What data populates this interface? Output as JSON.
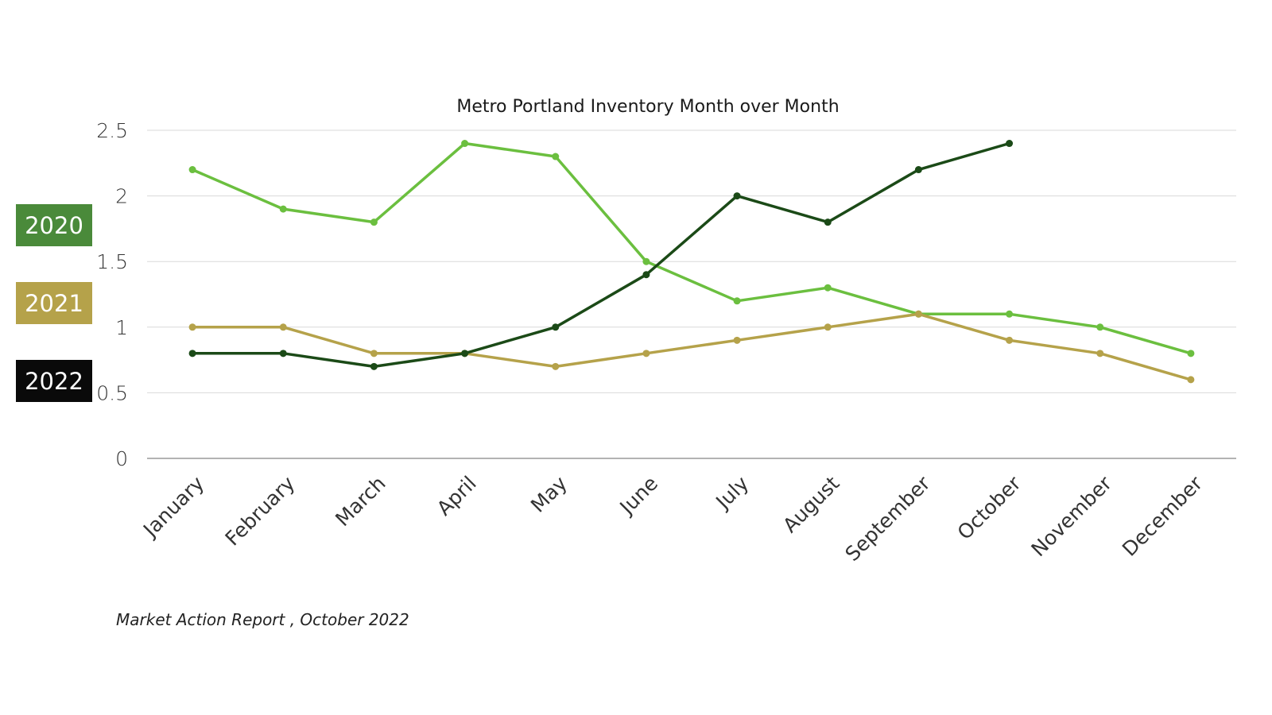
{
  "chart_data": {
    "type": "line",
    "title": "Metro Portland Inventory Month over Month",
    "categories": [
      "January",
      "February",
      "March",
      "April",
      "May",
      "June",
      "July",
      "August",
      "September",
      "October",
      "November",
      "December"
    ],
    "series": [
      {
        "name": "2020",
        "color": "#6bbf3f",
        "values": [
          2.2,
          1.9,
          1.8,
          2.4,
          2.3,
          1.5,
          1.2,
          1.3,
          1.1,
          1.1,
          1.0,
          0.8
        ]
      },
      {
        "name": "2021",
        "color": "#b5a24a",
        "values": [
          1.0,
          1.0,
          0.8,
          0.8,
          0.7,
          0.8,
          0.9,
          1.0,
          1.1,
          0.9,
          0.8,
          0.6
        ]
      },
      {
        "name": "2022",
        "color": "#1b4a17",
        "values": [
          0.8,
          0.8,
          0.7,
          0.8,
          1.0,
          1.4,
          2.0,
          1.8,
          2.2,
          2.4,
          null,
          null
        ]
      }
    ],
    "yticks": [
      "0",
      "0.5",
      "1",
      "1.5",
      "2",
      "2.5"
    ],
    "ylim": [
      0,
      2.5
    ],
    "xlabel": "",
    "ylabel": "",
    "grid": true,
    "legend": "left"
  },
  "legend": {
    "items": [
      {
        "label": "2020",
        "color": "#4a8a3a"
      },
      {
        "label": "2021",
        "color": "#b5a24a"
      },
      {
        "label": "2022",
        "color": "#0a0a0a"
      }
    ]
  },
  "caption": "Market Action Report , October 2022"
}
